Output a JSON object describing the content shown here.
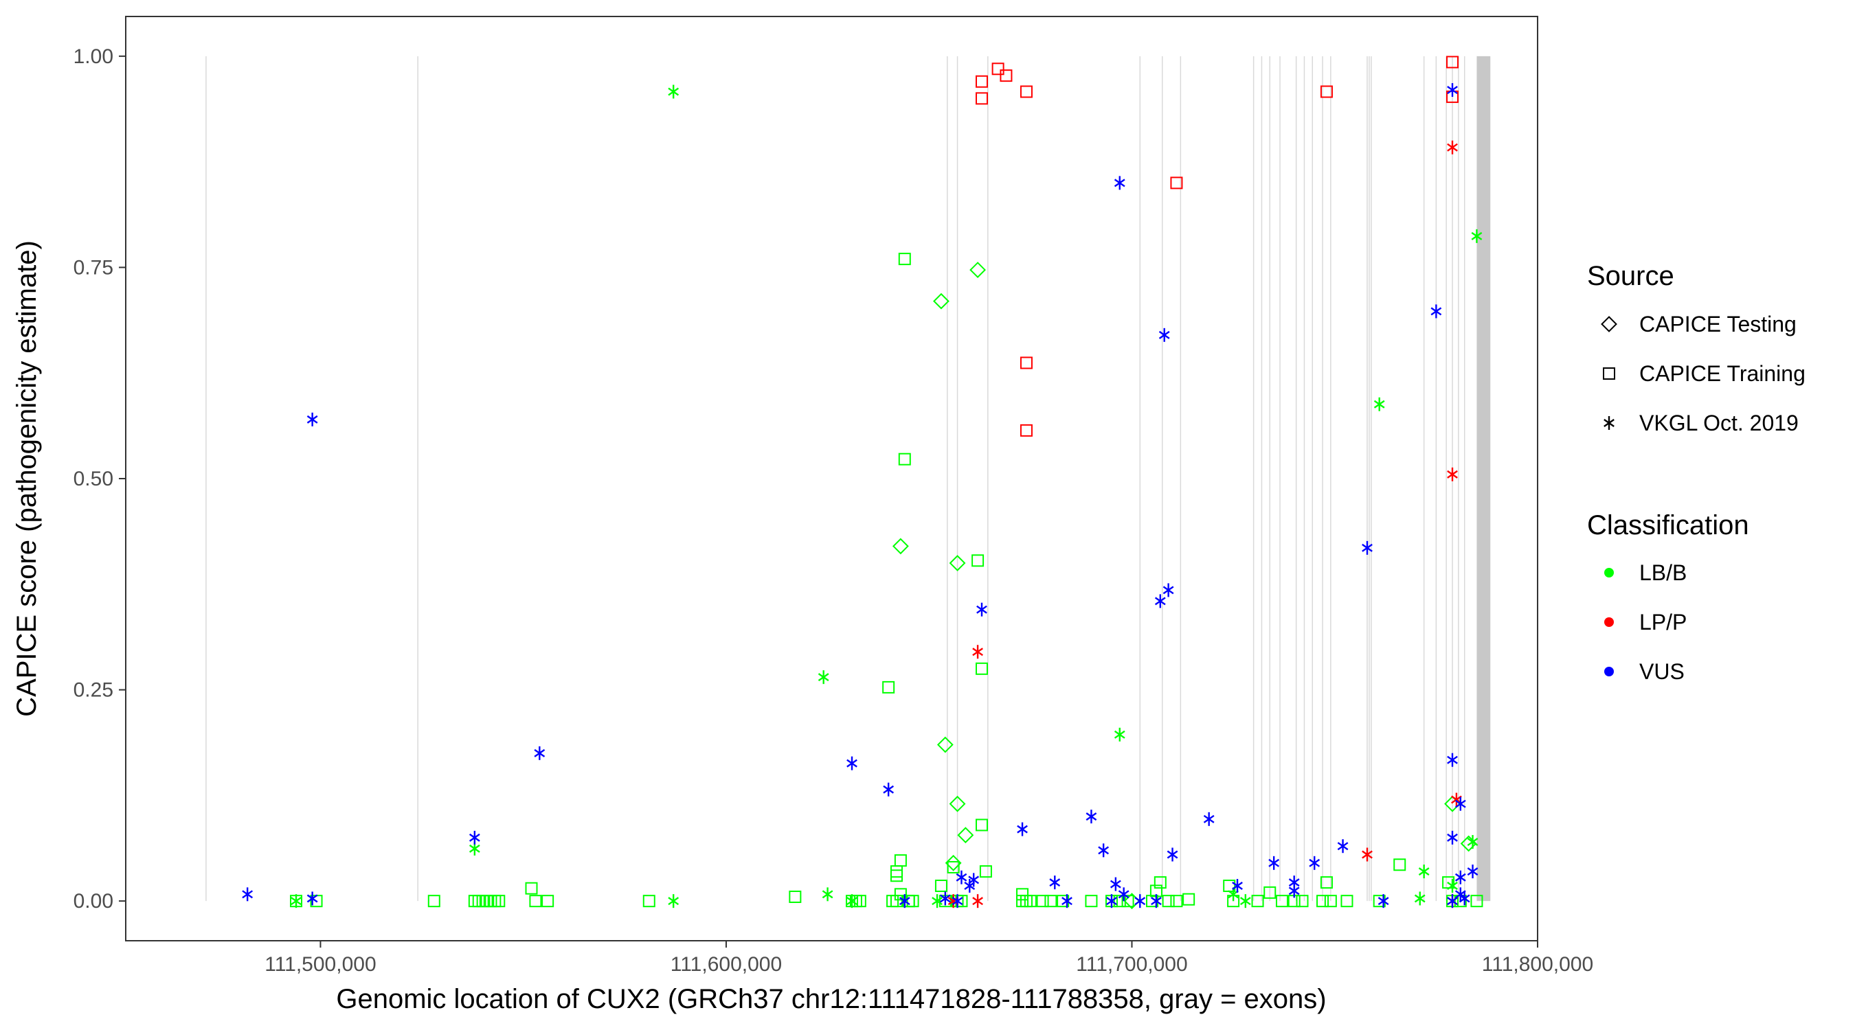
{
  "chart_data": {
    "type": "scatter",
    "title": "",
    "xlabel": "Genomic location of CUX2 (GRCh37 chr12:111471828-111788358, gray = exons)",
    "ylabel": "CAPICE score (pathogenicity estimate)",
    "xlim": [
      111452000,
      111800000
    ],
    "ylim": [
      -0.047,
      1.047
    ],
    "x_ticks": [
      111500000,
      111600000,
      111700000,
      111800000
    ],
    "x_tick_labels": [
      "111,500,000",
      "111,600,000",
      "111,700,000",
      "111,800,000"
    ],
    "y_ticks": [
      0,
      0.25,
      0.5,
      0.75,
      1
    ],
    "y_tick_labels": [
      "0.00",
      "0.25",
      "0.50",
      "0.75",
      "1.00"
    ],
    "grid": false,
    "exon_positions": [
      111471800,
      111524000,
      111654500,
      111657000,
      111664500,
      111702000,
      111707500,
      111712000,
      111730000,
      111732000,
      111734000,
      111736500,
      111740500,
      111742500,
      111744500,
      111747000,
      111749000,
      111758000,
      111758500,
      111759000,
      111772000,
      111775000,
      111777500,
      111779000,
      111780500,
      111782000
    ],
    "exon_block": [
      111785000,
      111788358
    ],
    "colors": {
      "LB/B": "#00ff00",
      "LP/P": "#ff0000",
      "VUS": "#0000ff",
      "exon": "#d9d9d9",
      "exon_block": "#c8c8c8"
    },
    "legend": {
      "position": "right",
      "source_title": "Source",
      "source_items": [
        "CAPICE Testing",
        "CAPICE Training",
        "VKGL Oct. 2019"
      ],
      "class_title": "Classification",
      "class_items": [
        "LB/B",
        "LP/P",
        "VUS"
      ]
    },
    "series": [
      {
        "source": "CAPICE Training",
        "classification": "LB/B",
        "x": [
          111494000,
          111499000,
          111528000,
          111538000,
          111539000,
          111540000,
          111541000,
          111542000,
          111543000,
          111544000,
          111552000,
          111553000,
          111556000,
          111581000,
          111617000,
          111631000,
          111632000,
          111633000,
          111640000,
          111641000,
          111642000,
          111642000,
          111642000,
          111643000,
          111643000,
          111644000,
          111644000,
          111645000,
          111645000,
          111646000,
          111653000,
          111654000,
          111656000,
          111657000,
          111658000,
          111662000,
          111663000,
          111663000,
          111664000,
          111673000,
          111673000,
          111674000,
          111675000,
          111678000,
          111680000,
          111683000,
          111690000,
          111695000,
          111697000,
          111699000,
          111705000,
          111706000,
          111707000,
          111709000,
          111711000,
          111714000,
          111724000,
          111725000,
          111731000,
          111734000,
          111737000,
          111740000,
          111742000,
          111747000,
          111748000,
          111749000,
          111753000,
          111761000,
          111766000,
          111778000,
          111779000,
          111781000,
          111785000
        ],
        "y": [
          0.0,
          0.0,
          0.0,
          0.0,
          0.0,
          0.0,
          0.0,
          0.0,
          0.0,
          0.0,
          0.015,
          0.0,
          0.0,
          0.0,
          0.005,
          0.0,
          0.0,
          0.0,
          0.253,
          0.0,
          0.03,
          0.035,
          0.0,
          0.048,
          0.008,
          0.76,
          0.523,
          0.0,
          0.0,
          0.0,
          0.018,
          0.0,
          0.04,
          0.0,
          0.0,
          0.403,
          0.09,
          0.275,
          0.035,
          0.008,
          0.0,
          0.0,
          0.0,
          0.0,
          0.0,
          0.0,
          0.0,
          0.0,
          0.0,
          0.0,
          0.0,
          0.012,
          0.022,
          0.0,
          0.0,
          0.002,
          0.018,
          0.0,
          0.0,
          0.01,
          0.0,
          0.0,
          0.0,
          0.0,
          0.022,
          0.0,
          0.0,
          0.0,
          0.043,
          0.022,
          0.0,
          0.0,
          0.0
        ]
      },
      {
        "source": "CAPICE Training",
        "classification": "LP/P",
        "x": [
          111663000,
          111663000,
          111667000,
          111669000,
          111674000,
          111674000,
          111674000,
          111711000,
          111748000,
          111779000,
          111779000
        ],
        "y": [
          0.97,
          0.95,
          0.985,
          0.977,
          0.958,
          0.637,
          0.557,
          0.85,
          0.958,
          0.993,
          0.952
        ]
      },
      {
        "source": "CAPICE Testing",
        "classification": "LB/B",
        "x": [
          111643000,
          111653000,
          111654000,
          111656000,
          111657000,
          111659000,
          111662000,
          111779000,
          111783000
        ],
        "y": [
          0.42,
          0.71,
          0.185,
          0.045,
          0.115,
          0.078,
          0.747,
          0.115,
          0.068
        ]
      },
      {
        "source": "CAPICE Testing",
        "classification": "LB/B",
        "x": [
          111657000,
          111700000
        ],
        "y": [
          0.4,
          0.0
        ]
      },
      {
        "source": "VKGL Oct. 2019",
        "classification": "LB/B",
        "x": [
          111494000,
          111538000,
          111587000,
          111587000,
          111624000,
          111625000,
          111631000,
          111652000,
          111697000,
          111725000,
          111728000,
          111761000,
          111771000,
          111772000,
          111779000,
          111784000,
          111785000
        ],
        "y": [
          0.0,
          0.062,
          0.958,
          0.0,
          0.265,
          0.008,
          0.0,
          0.0,
          0.197,
          0.008,
          0.0,
          0.588,
          0.003,
          0.035,
          0.018,
          0.07,
          0.787
        ]
      },
      {
        "source": "VKGL Oct. 2019",
        "classification": "LP/P",
        "x": [
          111656000,
          111662000,
          111662000,
          111758000,
          111779000,
          111779000,
          111780000,
          111779000
        ],
        "y": [
          0.0,
          0.295,
          0.0,
          0.055,
          0.892,
          0.505,
          0.12,
          0.0
        ]
      },
      {
        "source": "VKGL Oct. 2019",
        "classification": "VUS",
        "x": [
          111482000,
          111498000,
          111498000,
          111538000,
          111554000,
          111631000,
          111640000,
          111644000,
          111654000,
          111657000,
          111658000,
          111660000,
          111661000,
          111663000,
          111673000,
          111681000,
          111684000,
          111690000,
          111693000,
          111695000,
          111696000,
          111697000,
          111698000,
          111702000,
          111706000,
          111707000,
          111708000,
          111709000,
          111710000,
          111719000,
          111726000,
          111735000,
          111740000,
          111740000,
          111745000,
          111752000,
          111758000,
          111762000,
          111775000,
          111779000,
          111779000,
          111779000,
          111779000,
          111781000,
          111781000,
          111781000,
          111782000,
          111784000
        ],
        "y": [
          0.008,
          0.003,
          0.57,
          0.075,
          0.175,
          0.163,
          0.132,
          0.0,
          0.003,
          0.0,
          0.028,
          0.018,
          0.025,
          0.345,
          0.085,
          0.022,
          0.0,
          0.1,
          0.06,
          0.0,
          0.02,
          0.85,
          0.008,
          0.0,
          0.0,
          0.355,
          0.67,
          0.368,
          0.055,
          0.097,
          0.018,
          0.045,
          0.022,
          0.012,
          0.045,
          0.065,
          0.418,
          0.0,
          0.698,
          0.96,
          0.167,
          0.075,
          0.0,
          0.115,
          0.028,
          0.008,
          0.003,
          0.035
        ]
      }
    ]
  }
}
